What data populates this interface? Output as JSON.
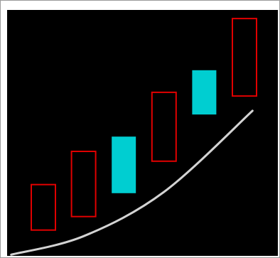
{
  "chart_data": {
    "type": "candlestick",
    "title": "",
    "xlabel": "",
    "ylabel": "",
    "legend": "none",
    "grid": false,
    "background_color": "#000000",
    "frame_color": "#ffffff",
    "y_range": [
      0,
      100
    ],
    "candles": [
      {
        "index": 1,
        "open": 10.5,
        "close": 29.0,
        "direction": "bearish",
        "style": "hollow",
        "color": "#e00000"
      },
      {
        "index": 2,
        "open": 16.0,
        "close": 42.5,
        "direction": "bearish",
        "style": "hollow",
        "color": "#e00000"
      },
      {
        "index": 3,
        "open": 25.5,
        "close": 48.5,
        "direction": "bullish",
        "style": "filled",
        "color": "#00ced1"
      },
      {
        "index": 4,
        "open": 38.5,
        "close": 66.5,
        "direction": "bearish",
        "style": "hollow",
        "color": "#e00000"
      },
      {
        "index": 5,
        "open": 57.5,
        "close": 75.5,
        "direction": "bullish",
        "style": "filled",
        "color": "#00ced1"
      },
      {
        "index": 6,
        "open": 65.0,
        "close": 96.5,
        "direction": "bearish",
        "style": "hollow",
        "color": "#e00000"
      }
    ],
    "trend_curve": {
      "color": "#d3d3d3",
      "points": [
        {
          "x": 0.2,
          "y": 0.5
        },
        {
          "x": 2.0,
          "y": 8.0
        },
        {
          "x": 4.0,
          "y": 26.0
        },
        {
          "x": 6.2,
          "y": 59.0
        }
      ]
    }
  }
}
